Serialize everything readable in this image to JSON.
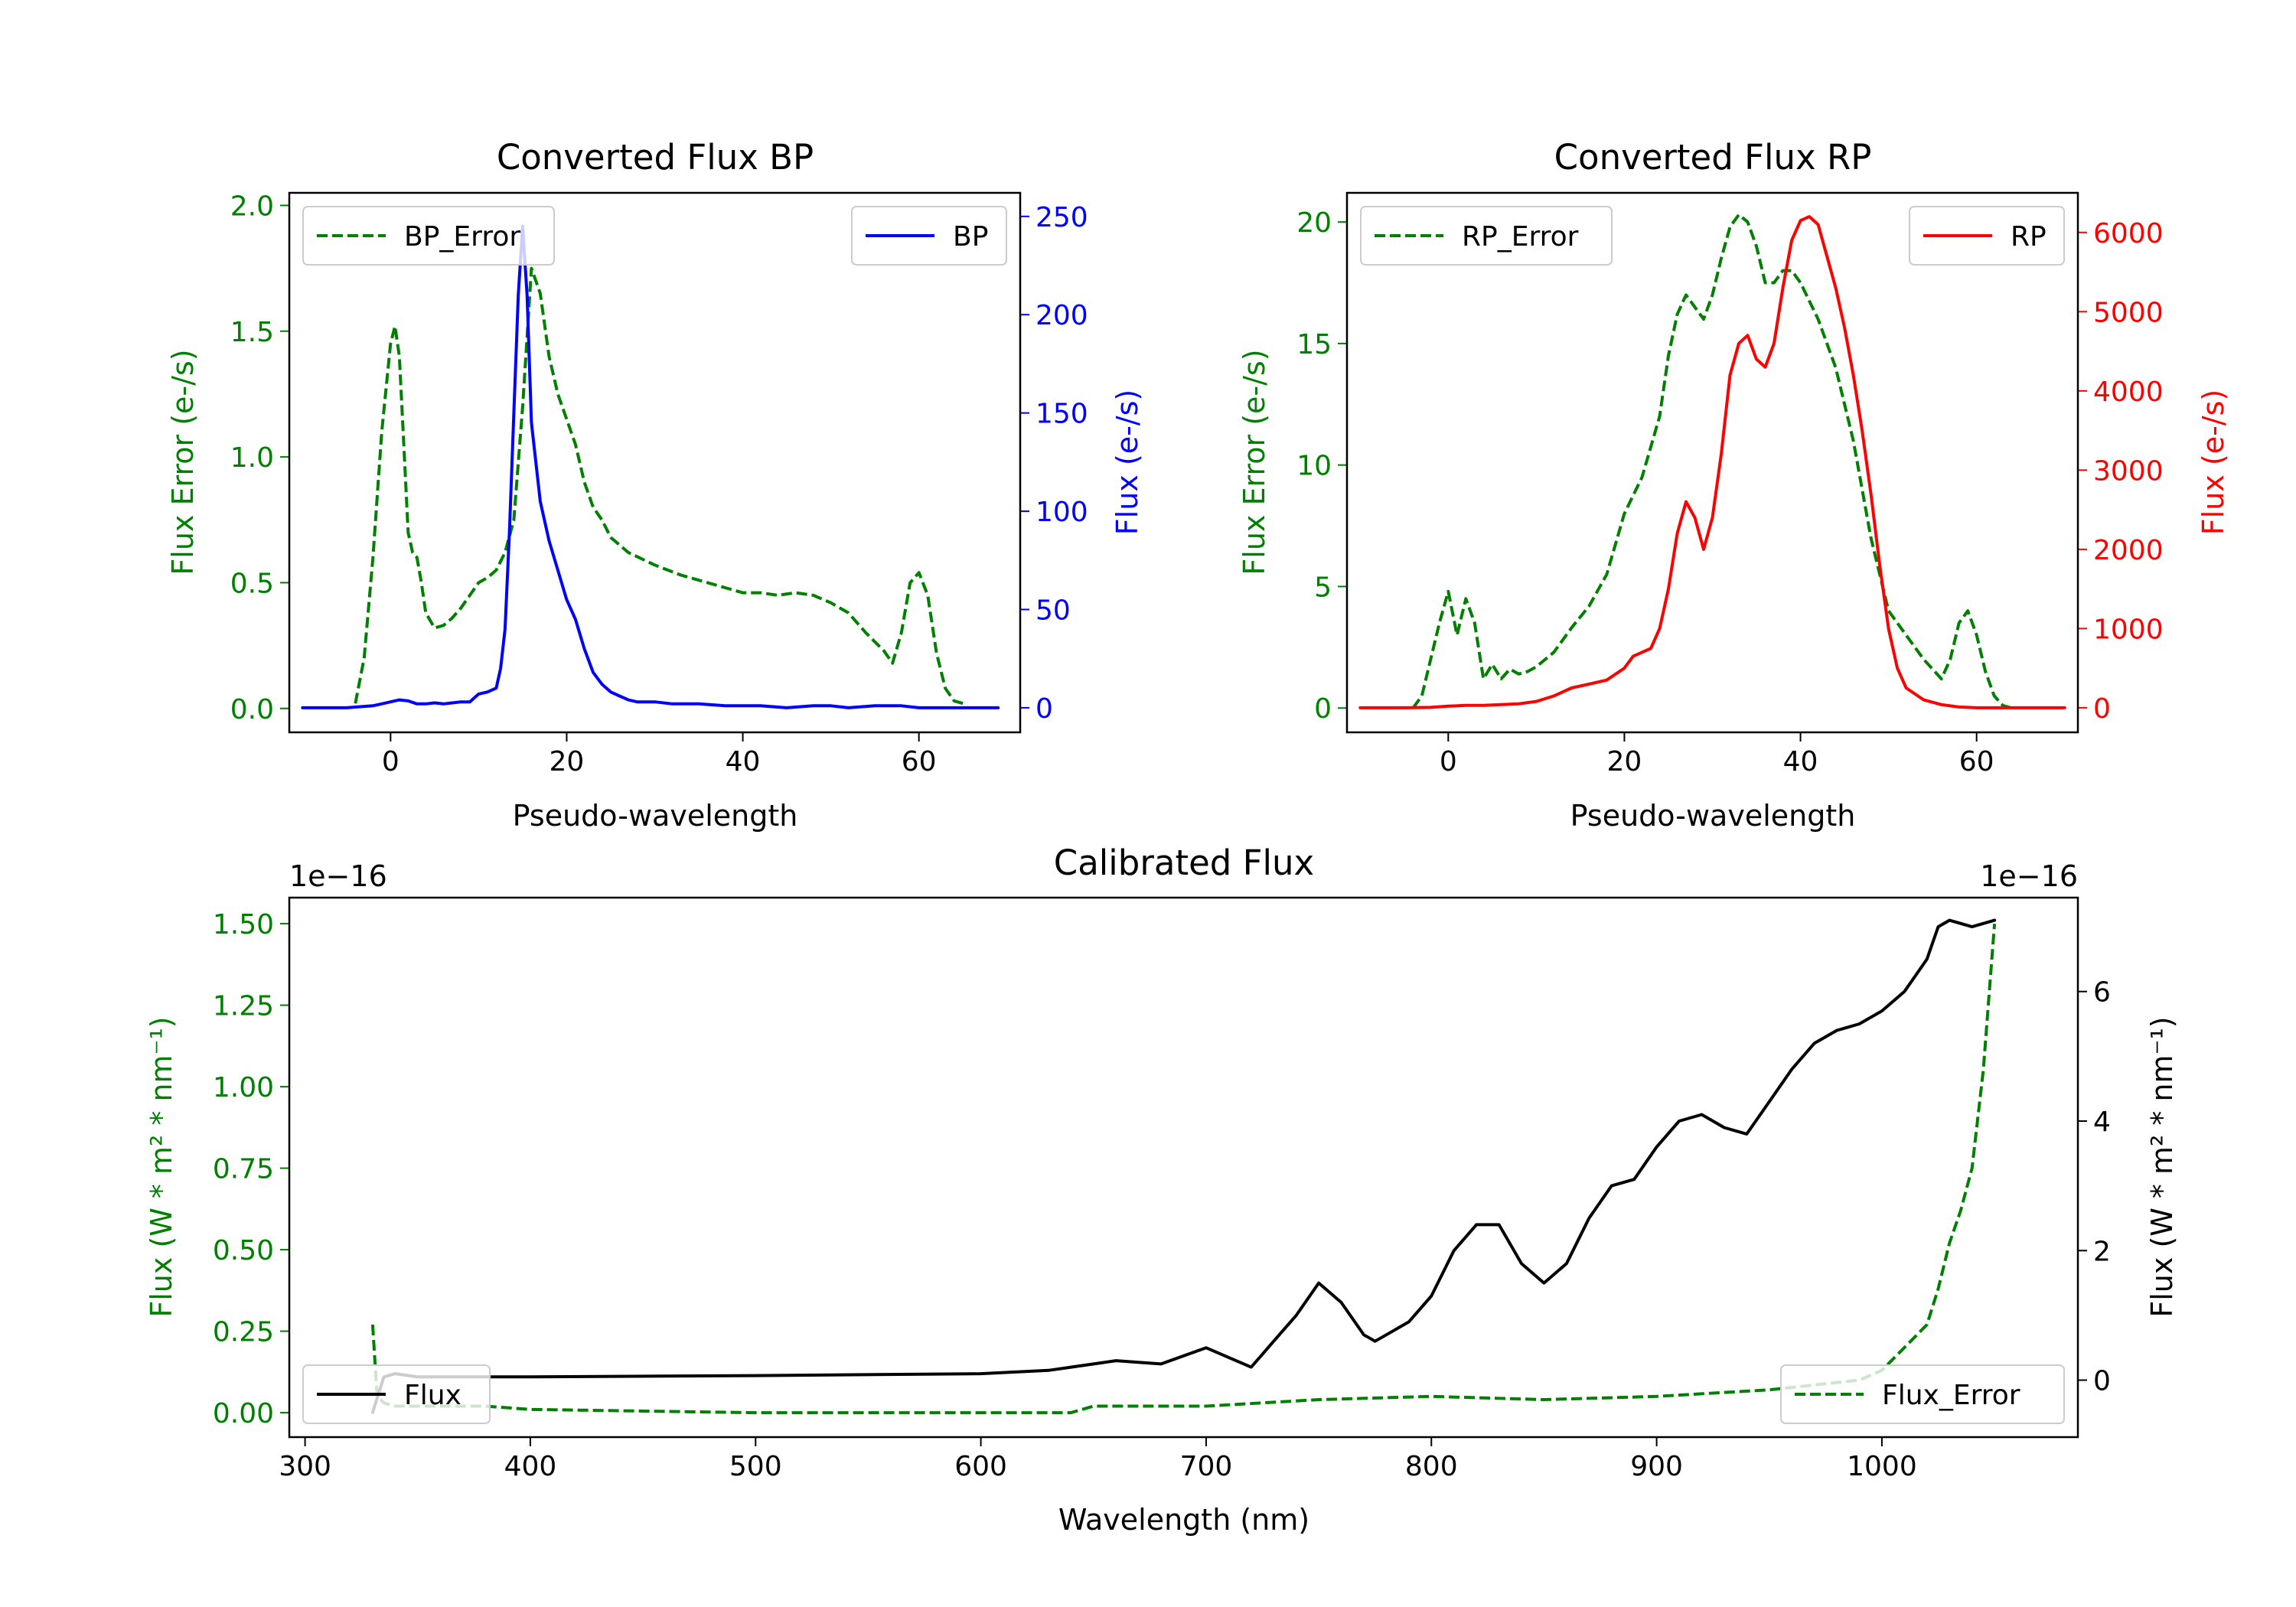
{
  "chart_data": [
    {
      "id": "bp",
      "type": "line",
      "title": "Converted Flux BP",
      "xlabel": "Pseudo-wavelength",
      "xlim": [
        -11.5,
        71.5
      ],
      "xticks": [
        0,
        20,
        40,
        60
      ],
      "xtick_labels": [
        "0",
        "20",
        "40",
        "60"
      ],
      "left_axis": {
        "label": "Flux Error (e-/s)",
        "color": "#008000",
        "ylim": [
          -0.095,
          2.05
        ],
        "ticks": [
          0.0,
          0.5,
          1.0,
          1.5,
          2.0
        ],
        "tick_labels": [
          "0.0",
          "0.5",
          "1.0",
          "1.5",
          "2.0"
        ]
      },
      "right_axis": {
        "label": "Flux (e-/s)",
        "color": "#0000ff",
        "ylim": [
          -12.5,
          262
        ],
        "ticks": [
          0,
          50,
          100,
          150,
          200,
          250
        ],
        "tick_labels": [
          "0",
          "50",
          "100",
          "150",
          "200",
          "250"
        ]
      },
      "series": [
        {
          "name": "BP_Error",
          "axis": "left",
          "color": "#008000",
          "style": "dashed",
          "x": [
            -4,
            -3,
            -2,
            -1,
            0,
            0.5,
            1,
            1.5,
            2,
            2.5,
            3,
            3.5,
            4,
            5,
            6,
            7,
            8,
            9,
            10,
            11,
            12,
            13,
            14,
            15,
            16,
            17,
            18,
            19,
            20,
            21,
            22,
            23,
            24,
            25,
            27,
            30,
            33,
            36,
            38,
            40,
            42,
            44,
            46,
            48,
            50,
            52,
            54,
            56,
            57,
            58,
            59,
            60,
            61,
            62,
            63,
            64,
            65
          ],
          "y": [
            0.02,
            0.2,
            0.6,
            1.1,
            1.45,
            1.52,
            1.4,
            1.05,
            0.7,
            0.62,
            0.6,
            0.5,
            0.38,
            0.32,
            0.33,
            0.36,
            0.4,
            0.45,
            0.5,
            0.52,
            0.55,
            0.62,
            0.75,
            1.2,
            1.75,
            1.65,
            1.4,
            1.25,
            1.15,
            1.05,
            0.9,
            0.8,
            0.75,
            0.68,
            0.62,
            0.57,
            0.53,
            0.5,
            0.48,
            0.46,
            0.46,
            0.45,
            0.46,
            0.45,
            0.42,
            0.38,
            0.3,
            0.23,
            0.18,
            0.3,
            0.5,
            0.54,
            0.45,
            0.22,
            0.08,
            0.03,
            0.02
          ]
        },
        {
          "name": "BP",
          "axis": "right",
          "color": "#0000ff",
          "style": "solid",
          "x": [
            -10,
            -5,
            -2,
            0,
            1,
            2,
            3,
            4,
            5,
            6,
            7,
            8,
            9,
            10,
            11,
            12,
            12.5,
            13,
            13.5,
            14,
            14.5,
            15,
            15.5,
            16,
            17,
            18,
            19,
            20,
            21,
            22,
            23,
            24,
            25,
            26,
            27,
            28,
            30,
            32,
            35,
            38,
            40,
            42,
            45,
            48,
            50,
            52,
            55,
            58,
            60,
            63,
            66,
            69
          ],
          "y": [
            0,
            0,
            1,
            3,
            4,
            3.5,
            2,
            2,
            2.5,
            2,
            2.5,
            3,
            3,
            7,
            8,
            10,
            20,
            40,
            90,
            150,
            210,
            245,
            210,
            145,
            105,
            85,
            70,
            55,
            45,
            30,
            18,
            12,
            8,
            6,
            4,
            3,
            3,
            2,
            2,
            1,
            1,
            1,
            0,
            1,
            1,
            0,
            1,
            1,
            0,
            0,
            0,
            0
          ]
        }
      ],
      "legends": [
        {
          "position": "upper left",
          "entries": [
            "BP_Error"
          ]
        },
        {
          "position": "upper right",
          "entries": [
            "BP"
          ]
        }
      ]
    },
    {
      "id": "rp",
      "type": "line",
      "title": "Converted Flux RP",
      "xlabel": "Pseudo-wavelength",
      "xlim": [
        -11.5,
        71.5
      ],
      "xticks": [
        0,
        20,
        40,
        60
      ],
      "xtick_labels": [
        "0",
        "20",
        "40",
        "60"
      ],
      "left_axis": {
        "label": "Flux Error (e-/s)",
        "color": "#008000",
        "ylim": [
          -1,
          21.2
        ],
        "ticks": [
          0,
          5,
          10,
          15,
          20
        ],
        "tick_labels": [
          "0",
          "5",
          "10",
          "15",
          "20"
        ]
      },
      "right_axis": {
        "label": "Flux (e-/s)",
        "color": "#ff0000",
        "ylim": [
          -310,
          6500
        ],
        "ticks": [
          0,
          1000,
          2000,
          3000,
          4000,
          5000,
          6000
        ],
        "tick_labels": [
          "0",
          "1000",
          "2000",
          "3000",
          "4000",
          "5000",
          "6000"
        ]
      },
      "series": [
        {
          "name": "RP_Error",
          "axis": "left",
          "color": "#008000",
          "style": "dashed",
          "x": [
            -4,
            -3,
            -2,
            -1,
            0,
            1,
            2,
            3,
            4,
            5,
            6,
            7,
            8,
            9,
            10,
            12,
            14,
            16,
            18,
            20,
            22,
            24,
            25,
            26,
            27,
            28,
            29,
            30,
            31,
            32,
            33,
            34,
            35,
            36,
            37,
            38,
            39,
            40,
            42,
            44,
            46,
            48,
            50,
            52,
            54,
            56,
            57,
            58,
            59,
            60,
            61,
            62,
            63,
            64
          ],
          "y": [
            0,
            0.5,
            2,
            3.5,
            4.8,
            3,
            4.5,
            3.5,
            1.2,
            1.8,
            1.2,
            1.6,
            1.4,
            1.5,
            1.7,
            2.3,
            3.3,
            4.2,
            5.5,
            8,
            9.5,
            12,
            14.5,
            16.2,
            17,
            16.5,
            16,
            17,
            18.5,
            19.8,
            20.3,
            20,
            19,
            17.5,
            17.5,
            18,
            18,
            17.5,
            16,
            14,
            11,
            7,
            4,
            3,
            2,
            1.2,
            2,
            3.5,
            4,
            3,
            1.5,
            0.5,
            0.1,
            0
          ]
        },
        {
          "name": "RP",
          "axis": "right",
          "color": "#ff0000",
          "style": "solid",
          "x": [
            -10,
            -5,
            -2,
            0,
            2,
            4,
            6,
            8,
            10,
            12,
            14,
            16,
            18,
            20,
            21,
            22,
            23,
            24,
            25,
            26,
            27,
            28,
            29,
            30,
            31,
            32,
            33,
            34,
            35,
            36,
            37,
            38,
            39,
            40,
            41,
            42,
            43,
            44,
            45,
            46,
            47,
            48,
            49,
            50,
            51,
            52,
            54,
            56,
            58,
            60,
            65,
            70
          ],
          "y": [
            0,
            0,
            5,
            20,
            30,
            30,
            40,
            50,
            80,
            150,
            250,
            300,
            350,
            500,
            650,
            700,
            750,
            1000,
            1500,
            2200,
            2600,
            2400,
            2000,
            2400,
            3200,
            4200,
            4600,
            4700,
            4400,
            4300,
            4600,
            5300,
            5900,
            6150,
            6200,
            6100,
            5700,
            5300,
            4800,
            4200,
            3500,
            2700,
            1800,
            1000,
            500,
            250,
            100,
            40,
            10,
            0,
            0,
            0
          ]
        }
      ],
      "legends": [
        {
          "position": "upper left",
          "entries": [
            "RP_Error"
          ]
        },
        {
          "position": "upper right",
          "entries": [
            "RP"
          ]
        }
      ]
    },
    {
      "id": "cal",
      "type": "line",
      "title": "Calibrated Flux",
      "xlabel": "Wavelength (nm)",
      "xlim": [
        293,
        1087
      ],
      "xticks": [
        300,
        400,
        500,
        600,
        700,
        800,
        900,
        1000
      ],
      "xtick_labels": [
        "300",
        "400",
        "500",
        "600",
        "700",
        "800",
        "900",
        "1000"
      ],
      "left_axis": {
        "label": "Flux (W * m² * nm⁻¹)",
        "color": "#008000",
        "ylim": [
          -0.075,
          1.58
        ],
        "offset_text": "1e−16",
        "ticks": [
          0.0,
          0.25,
          0.5,
          0.75,
          1.0,
          1.25,
          1.5
        ],
        "tick_labels": [
          "0.00",
          "0.25",
          "0.50",
          "0.75",
          "1.00",
          "1.25",
          "1.50"
        ]
      },
      "right_axis": {
        "label": "Flux (W * m² * nm⁻¹)",
        "color": "#000000",
        "ylim": [
          -0.88,
          7.45
        ],
        "offset_text": "1e−16",
        "ticks": [
          0,
          2,
          4,
          6
        ],
        "tick_labels": [
          "0",
          "2",
          "4",
          "6"
        ]
      },
      "series": [
        {
          "name": "Flux_Error",
          "axis": "left",
          "color": "#008000",
          "style": "dashed",
          "x": [
            330,
            332,
            335,
            340,
            360,
            380,
            400,
            500,
            600,
            640,
            650,
            700,
            750,
            800,
            850,
            900,
            950,
            990,
            1000,
            1010,
            1020,
            1025,
            1030,
            1035,
            1040,
            1045,
            1050
          ],
          "y": [
            0.27,
            0.05,
            0.03,
            0.02,
            0.02,
            0.02,
            0.01,
            0.0,
            0.0,
            0.0,
            0.02,
            0.02,
            0.04,
            0.05,
            0.04,
            0.05,
            0.07,
            0.1,
            0.13,
            0.2,
            0.27,
            0.38,
            0.52,
            0.62,
            0.75,
            1.05,
            1.5
          ]
        },
        {
          "name": "Flux",
          "axis": "right",
          "color": "#000000",
          "style": "solid",
          "x": [
            330,
            335,
            340,
            350,
            400,
            500,
            600,
            630,
            650,
            660,
            680,
            700,
            710,
            720,
            730,
            740,
            750,
            760,
            770,
            775,
            780,
            790,
            800,
            810,
            820,
            830,
            840,
            850,
            860,
            870,
            880,
            890,
            900,
            910,
            920,
            930,
            940,
            950,
            960,
            970,
            980,
            990,
            1000,
            1010,
            1020,
            1025,
            1030,
            1040,
            1050
          ],
          "y": [
            -0.5,
            0.05,
            0.1,
            0.05,
            0.05,
            0.07,
            0.1,
            0.15,
            0.25,
            0.3,
            0.25,
            0.5,
            0.35,
            0.2,
            0.6,
            1.0,
            1.5,
            1.2,
            0.7,
            0.6,
            0.7,
            0.9,
            1.3,
            2.0,
            2.4,
            2.4,
            1.8,
            1.5,
            1.8,
            2.5,
            3.0,
            3.1,
            3.6,
            4.0,
            4.1,
            3.9,
            3.8,
            4.3,
            4.8,
            5.2,
            5.4,
            5.5,
            5.7,
            6.0,
            6.5,
            7.0,
            7.1,
            7.0,
            7.1
          ]
        }
      ],
      "legends": [
        {
          "position": "lower left",
          "entries": [
            "Flux"
          ]
        },
        {
          "position": "lower right",
          "entries": [
            "Flux_Error"
          ]
        }
      ]
    }
  ]
}
